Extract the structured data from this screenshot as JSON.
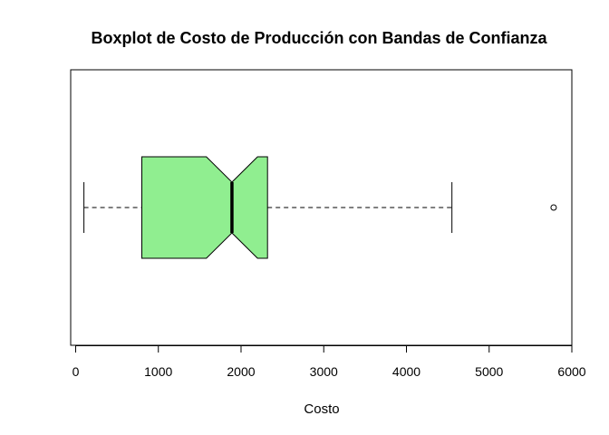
{
  "chart_data": {
    "type": "boxplot",
    "orientation": "horizontal",
    "notched": true,
    "title": "Boxplot de Costo de Producción con Bandas de Confianza",
    "xlabel": "Costo",
    "ylabel": "",
    "xlim": [
      -60,
      6000
    ],
    "xticks": [
      0,
      1000,
      2000,
      3000,
      4000,
      5000,
      6000
    ],
    "xtick_labels": [
      "0",
      "1000",
      "2000",
      "3000",
      "4000",
      "5000",
      "6000"
    ],
    "stats": {
      "whisker_low": 100,
      "q1": 800,
      "median": 1890,
      "q3": 2320,
      "whisker_high": 4550,
      "notch_low": 1580,
      "notch_high": 2200
    },
    "outliers": [
      5780
    ],
    "box_color": "#90EE90",
    "border_color": "#000000",
    "grid": false
  }
}
